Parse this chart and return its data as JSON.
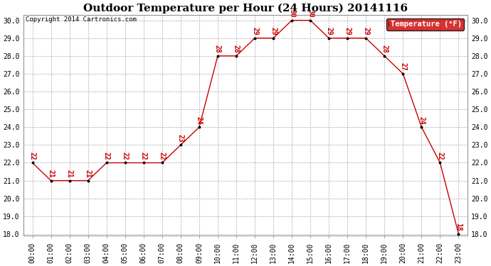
{
  "title": "Outdoor Temperature per Hour (24 Hours) 20141116",
  "copyright_text": "Copyright 2014 Cartronics.com",
  "legend_label": "Temperature (°F)",
  "hours": [
    "00:00",
    "01:00",
    "02:00",
    "03:00",
    "04:00",
    "05:00",
    "06:00",
    "07:00",
    "08:00",
    "09:00",
    "10:00",
    "11:00",
    "12:00",
    "13:00",
    "14:00",
    "15:00",
    "16:00",
    "17:00",
    "18:00",
    "19:00",
    "20:00",
    "21:00",
    "22:00",
    "23:00"
  ],
  "temperatures": [
    22,
    21,
    21,
    21,
    22,
    22,
    22,
    22,
    23,
    24,
    28,
    28,
    29,
    29,
    30,
    30,
    29,
    29,
    29,
    28,
    27,
    24,
    22,
    18
  ],
  "ylim_min": 18.0,
  "ylim_max": 30.0,
  "yticks": [
    18.0,
    19.0,
    20.0,
    21.0,
    22.0,
    23.0,
    24.0,
    25.0,
    26.0,
    27.0,
    28.0,
    29.0,
    30.0
  ],
  "line_color": "#cc0000",
  "marker_color": "#000000",
  "label_color": "#cc0000",
  "title_fontsize": 11,
  "axis_fontsize": 7,
  "label_fontsize": 7,
  "bg_color": "#ffffff",
  "grid_color": "#aaaaaa",
  "legend_bg": "#cc0000",
  "legend_text_color": "#ffffff"
}
